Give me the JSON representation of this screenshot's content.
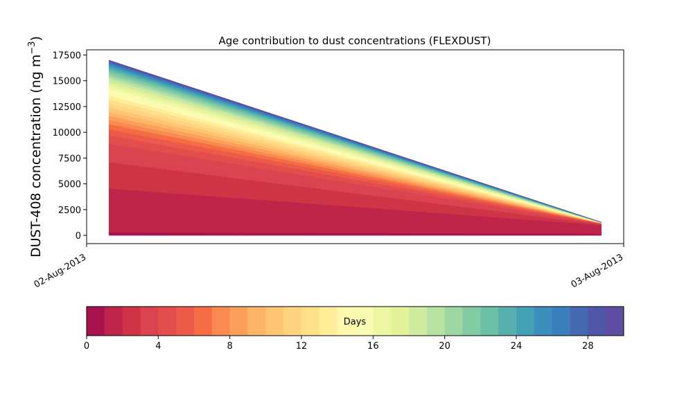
{
  "chart_data": {
    "type": "area",
    "title": "Age contribution to dust concentrations (FLEXDUST)",
    "ylabel": "DUST-408 concentration (ng m",
    "ylabel_sup": "−3",
    "ylabel_close": ")",
    "xlabel": "",
    "x_ticks": [
      "02-Aug-2013",
      "03-Aug-2013"
    ],
    "x_start": "02-Aug-2013 01:00",
    "x_end": "02-Aug-2013 23:00",
    "ylim": [
      -800,
      18000
    ],
    "y_ticks": [
      0,
      2500,
      5000,
      7500,
      10000,
      12500,
      15000,
      17500
    ],
    "stacked": true,
    "series_count": 30,
    "start_cumulative": [
      300,
      4550,
      7100,
      8900,
      9700,
      10300,
      10800,
      11200,
      11600,
      12000,
      12400,
      12800,
      13200,
      13550,
      13900,
      14250,
      14550,
      14850,
      15150,
      15400,
      15650,
      15900,
      16100,
      16300,
      16450,
      16600,
      16750,
      16850,
      16950,
      17000
    ],
    "end_cumulative": [
      150,
      1000,
      1070,
      1120,
      1150,
      1160,
      1170,
      1180,
      1190,
      1200,
      1205,
      1210,
      1215,
      1220,
      1225,
      1230,
      1235,
      1240,
      1245,
      1250,
      1255,
      1258,
      1261,
      1264,
      1267,
      1270,
      1272,
      1274,
      1276,
      1278
    ],
    "colorbar": {
      "label": "Days",
      "min": 0,
      "max": 30,
      "ticks": [
        0,
        4,
        8,
        12,
        16,
        20,
        24,
        28
      ],
      "colors": [
        "#a6124b",
        "#be2548",
        "#cf3446",
        "#da4350",
        "#e34d4c",
        "#ec5a4a",
        "#f46d43",
        "#f88a52",
        "#faa05a",
        "#fdb567",
        "#fec575",
        "#fed483",
        "#fee08b",
        "#ffed9a",
        "#fffab0",
        "#f7fcb0",
        "#eef7a3",
        "#e4f39a",
        "#cfeba0",
        "#b8e3a2",
        "#9ed6a4",
        "#82cba5",
        "#6bc0a5",
        "#57b0ab",
        "#46a0b4",
        "#3a8fbb",
        "#3a7ebb",
        "#4568b1",
        "#5157a6",
        "#5e4fa2"
      ]
    }
  }
}
